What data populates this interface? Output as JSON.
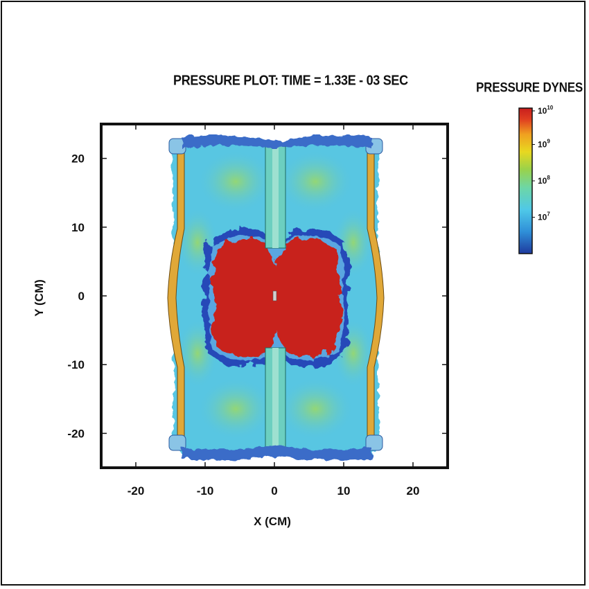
{
  "chart_data": {
    "type": "heatmap",
    "title": "PRESSURE PLOT: TIME = 1.33E - 03 SEC",
    "xlabel": "X (CM)",
    "ylabel": "Y (CM)",
    "xlim": [
      -25,
      25
    ],
    "ylim": [
      -25,
      25
    ],
    "xticks": [
      -20,
      -10,
      0,
      10,
      20
    ],
    "yticks": [
      20,
      10,
      0,
      -10,
      -20
    ],
    "xtick_labels": [
      "-20",
      "-10",
      "0",
      "10",
      "20"
    ],
    "ytick_labels": [
      "20",
      "10",
      "0",
      "-10",
      "-20"
    ],
    "colorbar": {
      "title": "PRESSURE DYNES",
      "scale": "log",
      "range": [
        1000000.0,
        10000000000.0
      ],
      "ticks": [
        {
          "value": 10000000000.0,
          "base": "10",
          "exp": "10"
        },
        {
          "value": 1000000000.0,
          "base": "10",
          "exp": "9"
        },
        {
          "value": 100000000.0,
          "base": "10",
          "exp": "8"
        },
        {
          "value": 10000000.0,
          "base": "10",
          "exp": "7"
        }
      ],
      "colors": [
        "#1e3a9e",
        "#2f8fd8",
        "#4fc8e8",
        "#6cd6a8",
        "#9ad24a",
        "#e8d820",
        "#f0a020",
        "#e04020",
        "#c81e1e"
      ]
    },
    "regions": [
      {
        "name": "container",
        "x": [
          -15,
          15
        ],
        "y": [
          -22.5,
          22.5
        ],
        "color": "#58c6e2"
      },
      {
        "name": "high-pressure core",
        "x": [
          -9,
          9
        ],
        "y": [
          -9,
          9
        ],
        "color": "#c8201c"
      },
      {
        "name": "left wall",
        "x": [
          -14.5,
          -13
        ],
        "y": [
          -20.5,
          20.5
        ],
        "color": "#e0a838"
      },
      {
        "name": "right wall",
        "x": [
          13,
          14.5
        ],
        "y": [
          -20.5,
          20.5
        ],
        "color": "#e0a838"
      },
      {
        "name": "central rod",
        "x": [
          -1.5,
          1.5
        ],
        "y": [
          -21.5,
          21.5
        ],
        "color": "#68d4b8"
      }
    ]
  }
}
